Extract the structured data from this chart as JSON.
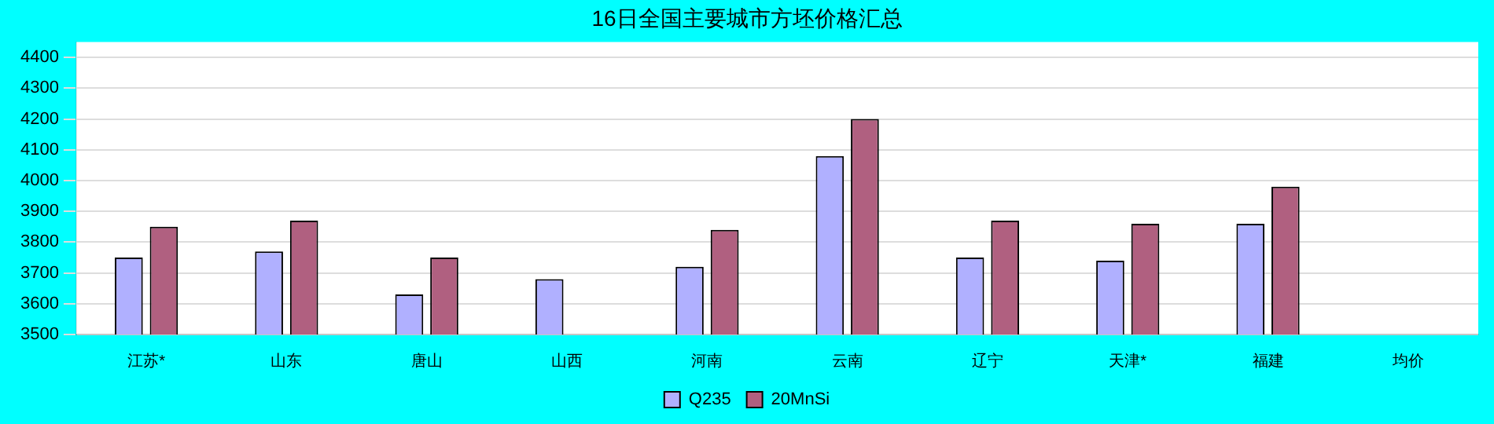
{
  "chart_data": {
    "type": "bar",
    "title": "16日全国主要城市方坯价格汇总",
    "categories": [
      "江苏*",
      "山东",
      "唐山",
      "山西",
      "河南",
      "云南",
      "辽宁",
      "天津*",
      "福建",
      "均价"
    ],
    "series": [
      {
        "name": "Q235",
        "color": "#b0b0ff",
        "values": [
          3750,
          3770,
          3630,
          3680,
          3720,
          4080,
          3750,
          3740,
          3860,
          null
        ]
      },
      {
        "name": "20MnSi",
        "color": "#b06080",
        "values": [
          3850,
          3870,
          3750,
          null,
          3840,
          4200,
          3870,
          3860,
          3980,
          null
        ]
      }
    ],
    "ylim": [
      3500,
      4450
    ],
    "yticks": [
      3500,
      3600,
      3700,
      3800,
      3900,
      4000,
      4100,
      4200,
      4300,
      4400
    ],
    "grid": "y",
    "legend": "bottom"
  }
}
